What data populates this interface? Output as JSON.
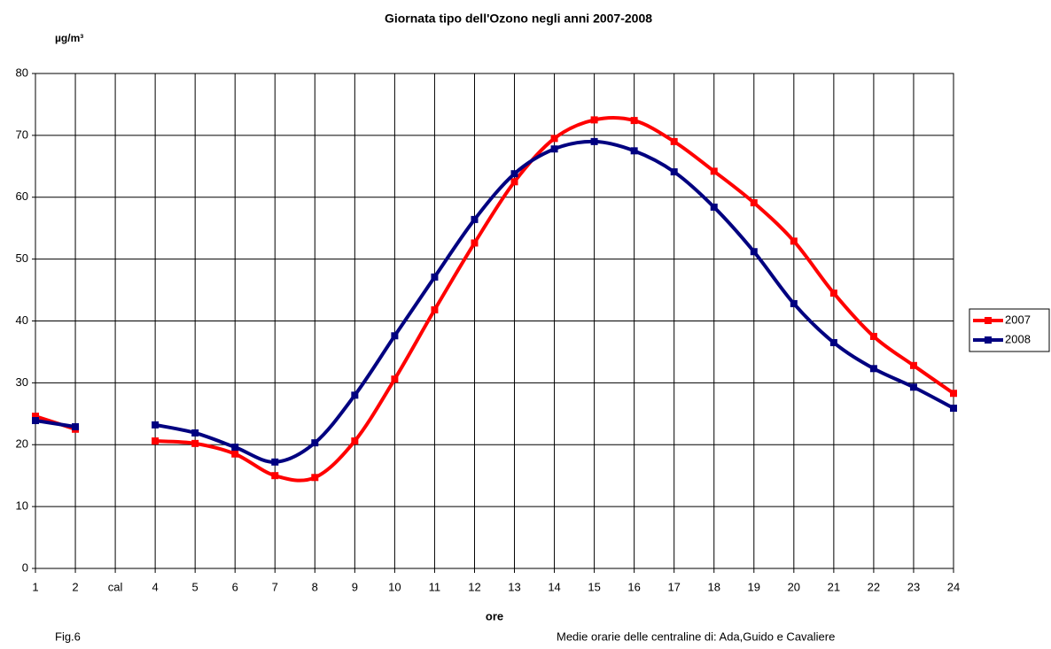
{
  "chart_data": {
    "type": "line",
    "title": "Giornata tipo dell'Ozono negli anni 2007-2008",
    "y_label": "µg/m³",
    "x_label": "ore",
    "notes": [
      "Fig.6",
      "Medie orarie delle centraline di: Ada,Guido e Cavaliere"
    ],
    "categories": [
      "1",
      "2",
      "cal",
      "4",
      "5",
      "6",
      "7",
      "8",
      "9",
      "10",
      "11",
      "12",
      "13",
      "14",
      "15",
      "16",
      "17",
      "18",
      "19",
      "20",
      "21",
      "22",
      "23",
      "24"
    ],
    "series": [
      {
        "name": "2007",
        "color": "#ff0000",
        "values": [
          24.6,
          22.5,
          null,
          20.6,
          20.2,
          18.5,
          15.0,
          14.7,
          20.6,
          30.6,
          41.8,
          52.6,
          62.5,
          69.5,
          72.5,
          72.4,
          69.0,
          64.2,
          59.1,
          52.9,
          44.5,
          37.5,
          32.8,
          28.3
        ]
      },
      {
        "name": "2008",
        "color": "#000080",
        "values": [
          23.9,
          22.9,
          null,
          23.2,
          21.9,
          19.6,
          17.2,
          20.3,
          28.0,
          37.6,
          47.1,
          56.4,
          63.8,
          67.8,
          69.0,
          67.5,
          64.1,
          58.4,
          51.2,
          42.8,
          36.5,
          32.3,
          29.3,
          25.9
        ]
      }
    ],
    "ylim": [
      0,
      80
    ],
    "yticks": [
      0,
      10,
      20,
      30,
      40,
      50,
      60,
      70,
      80
    ],
    "grid": true,
    "legend": "right"
  }
}
